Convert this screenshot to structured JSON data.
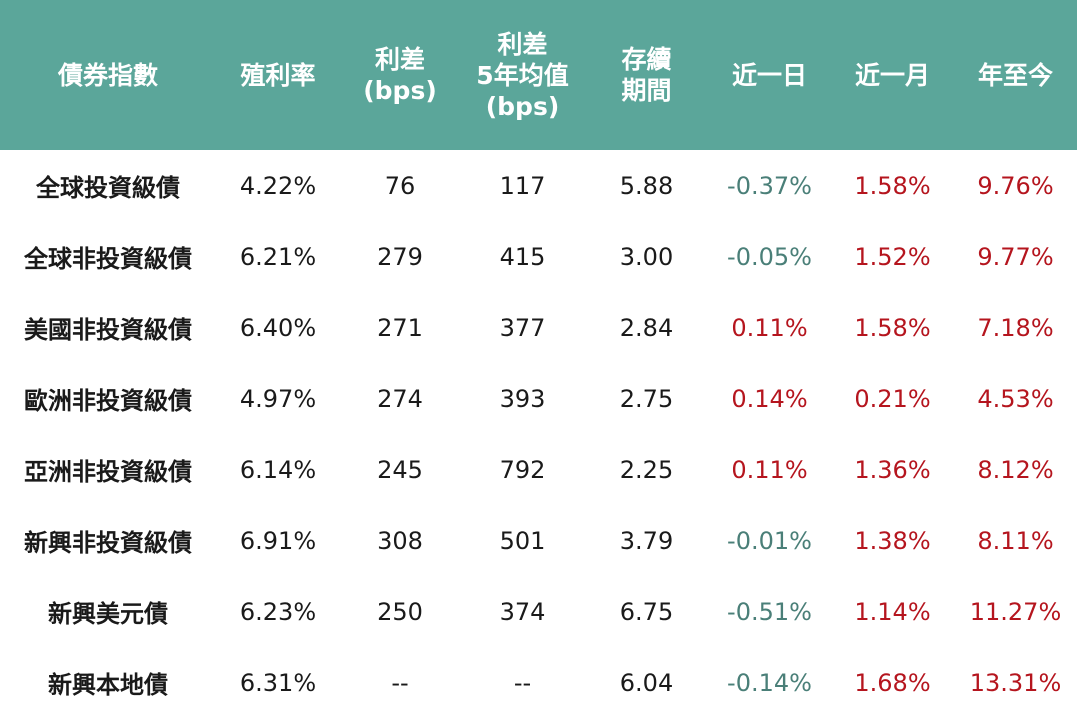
{
  "colors": {
    "header_bg": "#5ba69a",
    "header_text": "#ffffff",
    "negative": "#4a7f78",
    "positive": "#b5151e",
    "body_text": "#1a1a1a"
  },
  "headers": {
    "name": "債券指數",
    "yield": "殖利率",
    "spread": [
      "利差",
      "(bps)"
    ],
    "spread5y": [
      "利差",
      "5年均值",
      "(bps)"
    ],
    "duration": [
      "存續",
      "期間"
    ],
    "d1": "近一日",
    "m1": "近一月",
    "ytd": "年至今"
  },
  "rows": [
    {
      "name": "全球投資級債",
      "yield": "4.22%",
      "spread": "76",
      "spread5y": "117",
      "duration": "5.88",
      "d1": "-0.37%",
      "m1": "1.58%",
      "ytd": "9.76%"
    },
    {
      "name": "全球非投資級債",
      "yield": "6.21%",
      "spread": "279",
      "spread5y": "415",
      "duration": "3.00",
      "d1": "-0.05%",
      "m1": "1.52%",
      "ytd": "9.77%"
    },
    {
      "name": "美國非投資級債",
      "yield": "6.40%",
      "spread": "271",
      "spread5y": "377",
      "duration": "2.84",
      "d1": "0.11%",
      "m1": "1.58%",
      "ytd": "7.18%"
    },
    {
      "name": "歐洲非投資級債",
      "yield": "4.97%",
      "spread": "274",
      "spread5y": "393",
      "duration": "2.75",
      "d1": "0.14%",
      "m1": "0.21%",
      "ytd": "4.53%"
    },
    {
      "name": "亞洲非投資級債",
      "yield": "6.14%",
      "spread": "245",
      "spread5y": "792",
      "duration": "2.25",
      "d1": "0.11%",
      "m1": "1.36%",
      "ytd": "8.12%"
    },
    {
      "name": "新興非投資級債",
      "yield": "6.91%",
      "spread": "308",
      "spread5y": "501",
      "duration": "3.79",
      "d1": "-0.01%",
      "m1": "1.38%",
      "ytd": "8.11%"
    },
    {
      "name": "新興美元債",
      "yield": "6.23%",
      "spread": "250",
      "spread5y": "374",
      "duration": "6.75",
      "d1": "-0.51%",
      "m1": "1.14%",
      "ytd": "11.27%"
    },
    {
      "name": "新興本地債",
      "yield": "6.31%",
      "spread": "--",
      "spread5y": "--",
      "duration": "6.04",
      "d1": "-0.14%",
      "m1": "1.68%",
      "ytd": "13.31%"
    }
  ]
}
